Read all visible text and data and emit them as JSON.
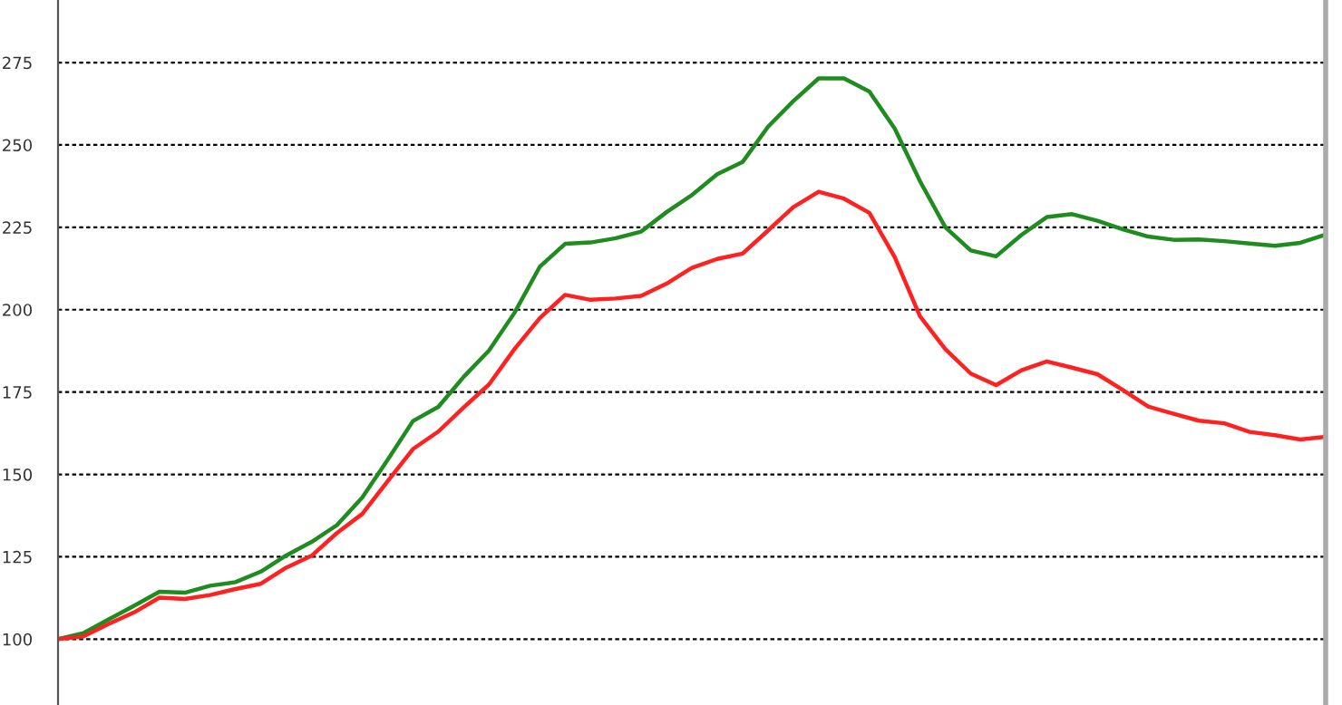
{
  "chart_data": {
    "type": "line",
    "tick_labels": "y",
    "grid": "y",
    "line_style": "solid",
    "marker": "none",
    "ylim": [
      80,
      294
    ],
    "yticks": [
      100,
      125,
      150,
      175,
      200,
      225,
      250,
      275
    ],
    "categories": [
      null,
      null,
      null,
      null,
      null,
      null,
      null,
      null,
      null,
      null,
      null,
      null,
      null,
      null,
      null,
      null,
      null,
      null,
      null,
      null,
      null,
      null,
      null,
      null,
      null,
      null,
      null,
      null,
      null,
      null,
      null,
      null,
      null,
      null,
      null,
      null,
      null,
      null,
      null,
      null,
      null,
      null,
      null,
      null,
      null,
      null,
      null,
      null,
      null,
      null,
      null
    ],
    "series": [
      {
        "color": "#1e8c1e",
        "values": [
          100,
          101.8,
          106,
          110.1,
          114.4,
          114.1,
          116.2,
          117.3,
          120.5,
          125.4,
          129.5,
          134.6,
          143,
          154.4,
          166.2,
          170.5,
          179.6,
          187.6,
          199,
          213,
          220,
          220.4,
          221.7,
          223.7,
          229.6,
          234.8,
          241.1,
          244.8,
          255.5,
          263.3,
          270.2,
          270.2,
          266.2,
          255,
          239,
          225,
          218,
          216.2,
          222.7,
          228.1,
          229,
          227,
          224.4,
          222.2,
          221.2,
          221.3,
          220.8,
          220.1,
          219.4,
          220.3,
          222.8
        ]
      },
      {
        "color": "#ff2020",
        "values": [
          100,
          100.8,
          104.6,
          108.1,
          112.6,
          112.2,
          113.4,
          115.2,
          116.8,
          121.7,
          125.3,
          132.2,
          138,
          147.9,
          157.7,
          163,
          170.3,
          177.3,
          188,
          197.4,
          204.5,
          203,
          203.4,
          204.2,
          207.9,
          212.7,
          215.4,
          217,
          224,
          231.1,
          235.8,
          233.7,
          229.4,
          216,
          198,
          188,
          180.6,
          177.1,
          181.6,
          184.3,
          182.4,
          180.4,
          175.6,
          170.6,
          168.4,
          166.3,
          165.5,
          162.9,
          161.9,
          160.6,
          161.4
        ]
      }
    ]
  }
}
